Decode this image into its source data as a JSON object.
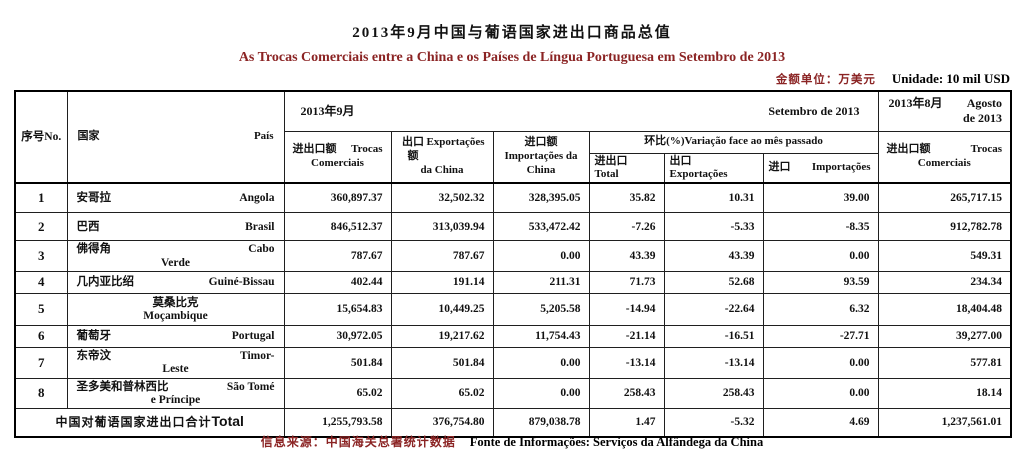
{
  "title_zh": "2013年9月中国与葡语国家进出口商品总值",
  "title_pt": "As Trocas Comerciais entre a China e os Países de Língua Portuguesa em Setembro de 2013",
  "units": {
    "zh": "金额单位：万美元",
    "pt": "Unidade: 10 mil USD"
  },
  "colors": {
    "accent_red": "#8b2424"
  },
  "table": {
    "header": {
      "no": "序号No.",
      "country_zh": "国家",
      "country_pt": "País",
      "sep_zh": "2013年9月",
      "sep_pt": "Setembro de 2013",
      "aug_zh": "2013年8月",
      "aug_pt_line1": "Agosto",
      "aug_pt_line2": "de 2013",
      "trocas_zh": "进出口额",
      "trocas_pt_line1": "Trocas",
      "trocas_pt_line2": "Comerciais",
      "exportacoes_zh": "出口额",
      "exportacoes_pt_line1": "Exportações",
      "exportacoes_pt_line2": "da China",
      "importacoes_zh": "进口额",
      "importacoes_pt_line1": "Importações da",
      "importacoes_pt_line2": "China",
      "variacao": "环比(%)Variação face ao mês passado",
      "var_total_zh": "进出口",
      "var_total_pt": "Total",
      "var_exp_zh": "出口",
      "var_exp_pt": "Exportações",
      "var_imp_zh": "进口",
      "var_imp_pt": "Importações",
      "aug_trocas_zh": "进出口额",
      "aug_trocas_pt_line1": "Trocas",
      "aug_trocas_pt_line2": "Comerciais"
    },
    "rows": [
      {
        "no": "1",
        "zh": "安哥拉",
        "pt1": "Angola",
        "pt2": "",
        "values": [
          "360,897.37",
          "32,502.32",
          "328,395.05",
          "35.82",
          "10.31",
          "39.00",
          "265,717.15"
        ]
      },
      {
        "no": "2",
        "zh": "巴西",
        "pt1": "Brasil",
        "pt2": "",
        "values": [
          "846,512.37",
          "313,039.94",
          "533,472.42",
          "-7.26",
          "-5.33",
          "-8.35",
          "912,782.78"
        ]
      },
      {
        "no": "3",
        "zh": "佛得角",
        "pt1": "Cabo",
        "pt2": "Verde",
        "values": [
          "787.67",
          "787.67",
          "0.00",
          "43.39",
          "43.39",
          "0.00",
          "549.31"
        ]
      },
      {
        "no": "4",
        "zh": "几内亚比绍",
        "pt1": "Guiné-Bissau",
        "pt2": "",
        "values": [
          "402.44",
          "191.14",
          "211.31",
          "71.73",
          "52.68",
          "93.59",
          "234.34"
        ]
      },
      {
        "no": "5",
        "zh": "莫桑比克",
        "pt1": "",
        "pt2": "Moçambique",
        "values": [
          "15,654.83",
          "10,449.25",
          "5,205.58",
          "-14.94",
          "-22.64",
          "6.32",
          "18,404.48"
        ]
      },
      {
        "no": "6",
        "zh": "葡萄牙",
        "pt1": "Portugal",
        "pt2": "",
        "values": [
          "30,972.05",
          "19,217.62",
          "11,754.43",
          "-21.14",
          "-16.51",
          "-27.71",
          "39,277.00"
        ]
      },
      {
        "no": "7",
        "zh": "东帝汶",
        "pt1": "Timor-",
        "pt2": "Leste",
        "values": [
          "501.84",
          "501.84",
          "0.00",
          "-13.14",
          "-13.14",
          "0.00",
          "577.81"
        ]
      },
      {
        "no": "8",
        "zh": "圣多美和普林西比",
        "pt1": "São Tomé",
        "pt2": "e Príncipe",
        "values": [
          "65.02",
          "65.02",
          "0.00",
          "258.43",
          "258.43",
          "0.00",
          "18.14"
        ]
      }
    ],
    "total": {
      "label_zh": "中国对葡语国家进出口合计",
      "label_pt": "Total",
      "values": [
        "1,255,793.58",
        "376,754.80",
        "879,038.78",
        "1.47",
        "-5.32",
        "4.69",
        "1,237,561.01"
      ]
    }
  },
  "footer": {
    "zh": "信息来源：中国海关总署统计数据",
    "pt": "Fonte de Informações: Serviços da Alfândega da China"
  }
}
